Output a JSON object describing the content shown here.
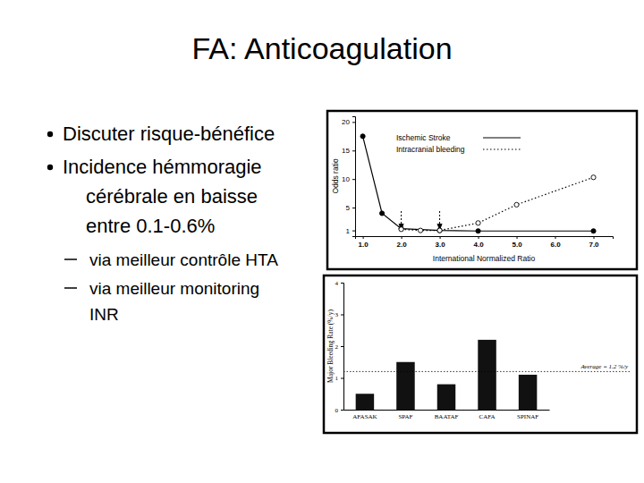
{
  "slide": {
    "title": "FA: Anticoagulation",
    "bullets": [
      {
        "lines": [
          "Discuter risque-bénéfice"
        ]
      },
      {
        "lines": [
          "Incidence hémmoragie",
          "cérébrale en baisse",
          "entre 0.1-0.6%"
        ],
        "sub_bullets": [
          {
            "lines": [
              "via meilleur contrôle HTA"
            ]
          },
          {
            "lines": [
              "via meilleur monitoring",
              "INR"
            ]
          }
        ]
      }
    ]
  },
  "chart_data": [
    {
      "type": "line",
      "x_label": "International Normalized Ratio",
      "y_label": "Odds ratio",
      "xlim": [
        0.8,
        7.5
      ],
      "ylim": [
        0,
        21
      ],
      "xticks": [
        {
          "value": 1,
          "label": "1.0"
        },
        {
          "value": 2,
          "label": "2.0"
        },
        {
          "value": 3,
          "label": "3.0"
        },
        {
          "value": 4,
          "label": "4.0"
        },
        {
          "value": 5,
          "label": "5.0"
        },
        {
          "value": 6,
          "label": "6.0"
        },
        {
          "value": 7,
          "label": "7.0"
        }
      ],
      "yticks": [
        1,
        5,
        10,
        15,
        20
      ],
      "legend": "upper right",
      "arrows_x": [
        2,
        3
      ],
      "series": [
        {
          "name": "Ischemic Stroke",
          "color": "#000000",
          "line_style": "solid",
          "marker": "filled-circle",
          "x": [
            1.0,
            1.5,
            2.0,
            3.0,
            4.0,
            7.0
          ],
          "values": [
            17.5,
            4,
            1.3,
            1.0,
            0.9,
            0.9
          ]
        },
        {
          "name": "Intracranial bleeding",
          "color": "#000000",
          "line_style": "dotted",
          "marker": "open-circle",
          "x": [
            2.0,
            2.5,
            3.0,
            4.0,
            5.0,
            7.0
          ],
          "values": [
            1.2,
            1.0,
            1.0,
            2.3,
            5.5,
            10.3
          ]
        }
      ]
    },
    {
      "type": "bar",
      "y_label": "Major Bleeding Rate (%/y)",
      "categories": [
        "AFASAK",
        "SPAF",
        "BAATAF",
        "CAFA",
        "SPINAF"
      ],
      "values": [
        0.5,
        1.5,
        0.8,
        2.2,
        1.1
      ],
      "color": "#111111",
      "ylim": [
        0,
        4
      ],
      "yticks": [
        0,
        1,
        2,
        3,
        4
      ],
      "reference_line": {
        "value": 1.2,
        "label": "Average = 1.2 %/y"
      }
    }
  ]
}
